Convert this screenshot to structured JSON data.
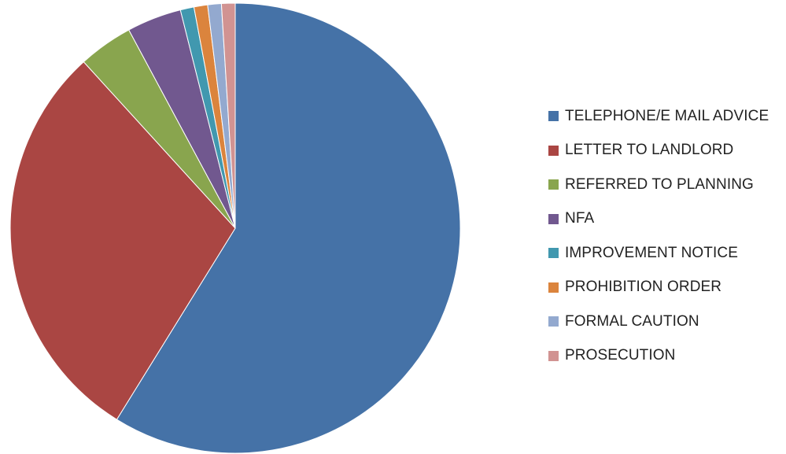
{
  "chart_data": {
    "type": "pie",
    "title": "",
    "legend_position": "right",
    "start_angle_deg": 0,
    "direction": "clockwise",
    "series": [
      {
        "values": [
          60,
          30,
          4,
          4,
          1,
          1,
          1,
          1
        ]
      }
    ],
    "categories": [
      "TELEPHONE/E MAIL ADVICE",
      "LETTER TO LANDLORD",
      "REFERRED TO PLANNING",
      "NFA",
      "IMPROVEMENT NOTICE",
      "PROHIBITION ORDER",
      "FORMAL CAUTION",
      "PROSECUTION"
    ],
    "colors": [
      "#4572A7",
      "#AA4643",
      "#89A54E",
      "#71588F",
      "#4198AF",
      "#DB843D",
      "#93A9CF",
      "#D19392"
    ]
  }
}
